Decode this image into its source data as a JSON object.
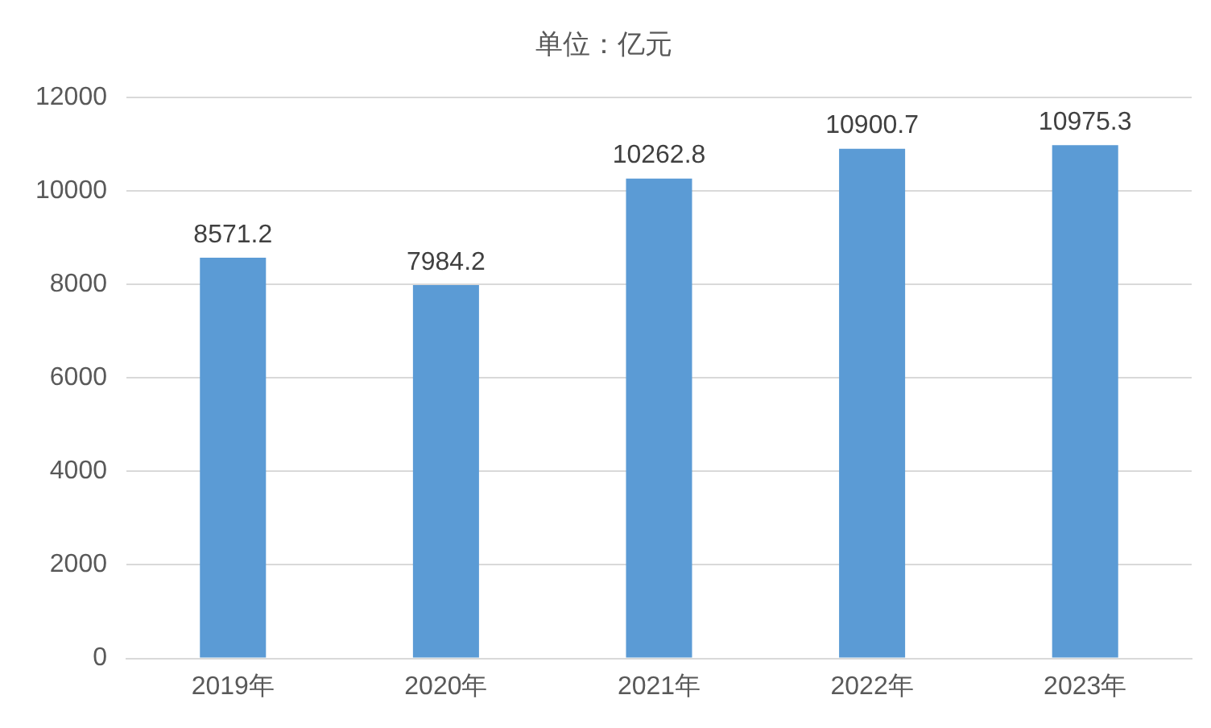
{
  "chart_data": {
    "type": "bar",
    "title": "单位：亿元",
    "categories": [
      "2019年",
      "2020年",
      "2021年",
      "2022年",
      "2023年"
    ],
    "values": [
      8571.2,
      7984.2,
      10262.8,
      10900.7,
      10975.3
    ],
    "color": "#5b9bd5",
    "ylim": [
      0,
      12000
    ],
    "yticks": [
      0,
      2000,
      4000,
      6000,
      8000,
      10000,
      12000
    ],
    "grid": "y",
    "data_labels": true,
    "legend": false
  }
}
